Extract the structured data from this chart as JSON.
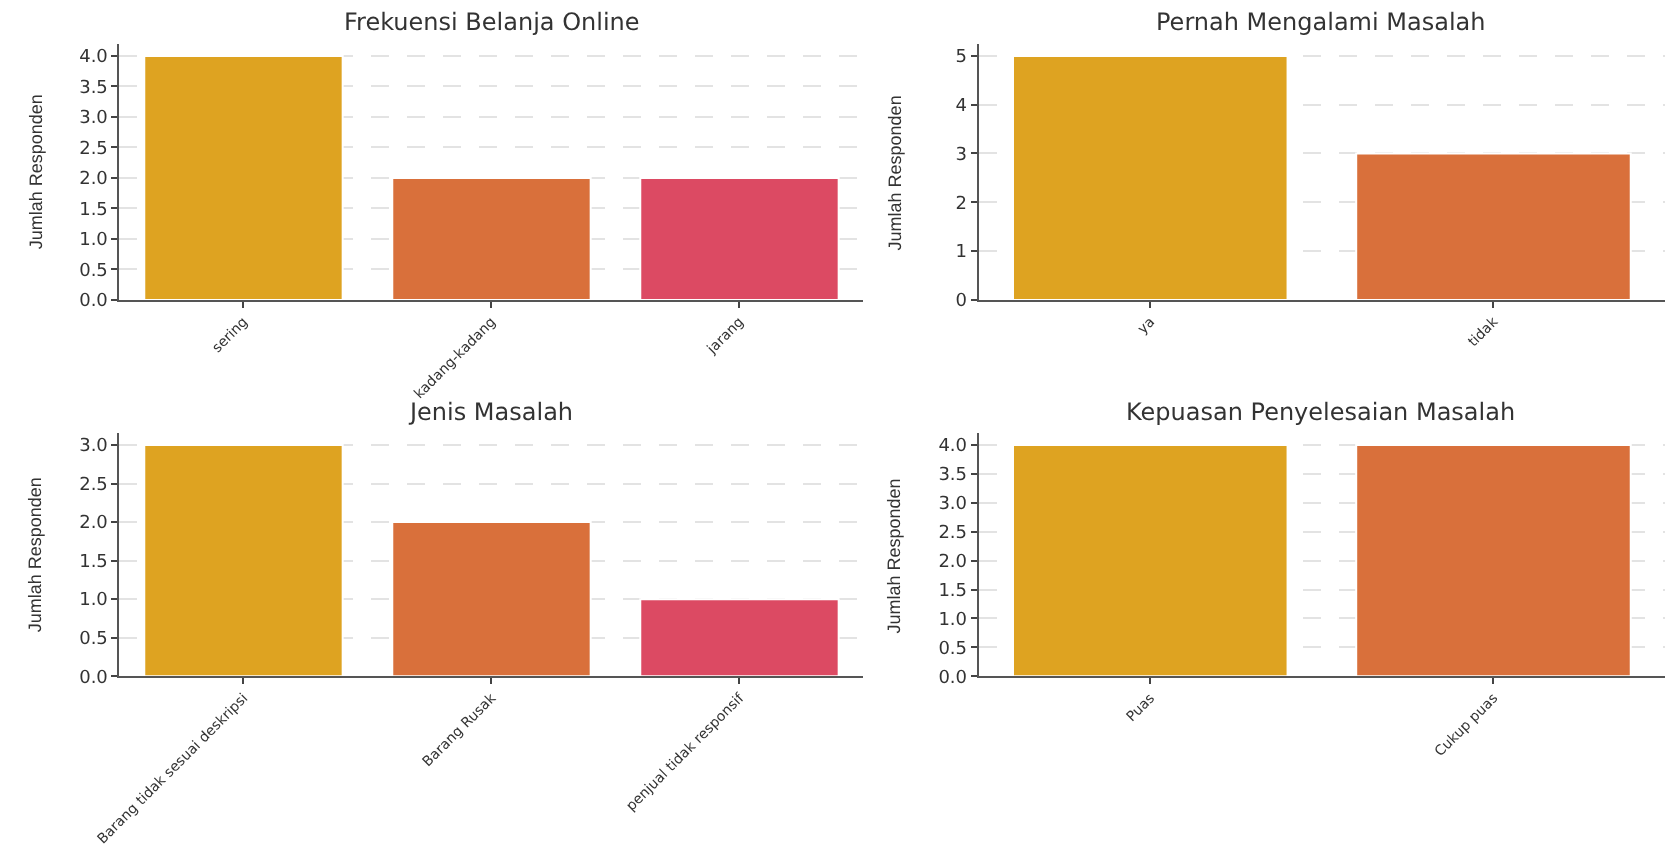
{
  "chart_data": [
    {
      "type": "bar",
      "title": "Frekuensi Belanja Online",
      "ylabel": "Jumlah Responden",
      "categories": [
        "sering",
        "kadang-kadang",
        "jarang"
      ],
      "values": [
        4,
        2,
        2
      ],
      "colors": [
        "#dea321",
        "#d9703b",
        "#dc4a63"
      ],
      "ylim": [
        0,
        4.2
      ],
      "yticks": [
        {
          "value": 0,
          "label": "0.0"
        },
        0.5,
        {
          "value": 1,
          "label": "1.0"
        },
        1.5,
        {
          "value": 2,
          "label": "2.0"
        },
        2.5,
        {
          "value": 3,
          "label": "3.0"
        },
        3.5,
        {
          "value": 4,
          "label": "4.0"
        }
      ],
      "grid": "y"
    },
    {
      "type": "bar",
      "title": "Pernah Mengalami Masalah",
      "ylabel": "Jumlah Responden",
      "categories": [
        "ya",
        "tidak"
      ],
      "values": [
        5,
        3
      ],
      "colors": [
        "#dea321",
        "#d9703b"
      ],
      "ylim": [
        0,
        5.25
      ],
      "yticks": [
        0,
        1,
        2,
        3,
        4,
        5
      ],
      "grid": "y"
    },
    {
      "type": "bar",
      "title": "Jenis Masalah",
      "ylabel": "Jumlah Responden",
      "categories": [
        "Barang tidak sesuai deskripsi",
        "Barang Rusak",
        "penjual tidak responsif"
      ],
      "values": [
        3,
        2,
        1
      ],
      "colors": [
        "#dea321",
        "#d9703b",
        "#dc4a63"
      ],
      "ylim": [
        0,
        3.15
      ],
      "yticks": [
        {
          "value": 0,
          "label": "0.0"
        },
        0.5,
        {
          "value": 1,
          "label": "1.0"
        },
        1.5,
        {
          "value": 2,
          "label": "2.0"
        },
        2.5,
        {
          "value": 3,
          "label": "3.0"
        }
      ],
      "grid": "y"
    },
    {
      "type": "bar",
      "title": "Kepuasan Penyelesaian Masalah",
      "ylabel": "Jumlah Responden",
      "categories": [
        "Puas",
        "Cukup puas"
      ],
      "values": [
        4,
        4
      ],
      "colors": [
        "#dea321",
        "#d9703b"
      ],
      "ylim": [
        0,
        4.2
      ],
      "yticks": [
        {
          "value": 0,
          "label": "0.0"
        },
        0.5,
        {
          "value": 1,
          "label": "1.0"
        },
        1.5,
        {
          "value": 2,
          "label": "2.0"
        },
        2.5,
        {
          "value": 3,
          "label": "3.0"
        },
        3.5,
        {
          "value": 4,
          "label": "4.0"
        }
      ],
      "grid": "y"
    }
  ]
}
